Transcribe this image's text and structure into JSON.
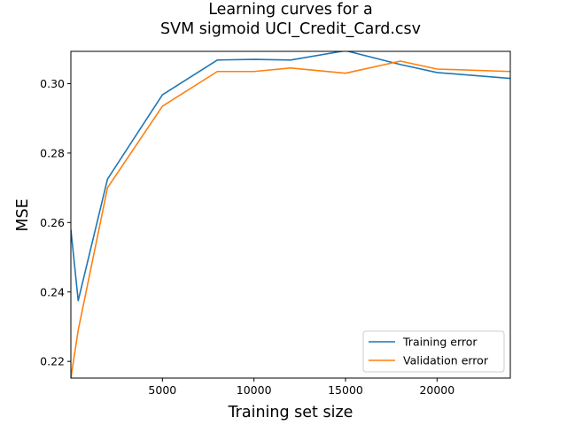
{
  "chart_data": {
    "type": "line",
    "title": [
      "Learning curves for a",
      "SVM sigmoid UCI_Credit_Card.csv"
    ],
    "xlabel": "Training set size",
    "ylabel": "MSE",
    "xlim": [
      0,
      24000
    ],
    "ylim": [
      0.2152,
      0.3093
    ],
    "xticks": [
      5000,
      10000,
      15000,
      20000
    ],
    "xtick_labels": [
      "5000",
      "10000",
      "15000",
      "20000"
    ],
    "yticks": [
      0.22,
      0.24,
      0.26,
      0.28,
      0.3
    ],
    "ytick_labels": [
      "0.22",
      "0.24",
      "0.26",
      "0.28",
      "0.30"
    ],
    "grid": false,
    "legend_position": "lower right",
    "series": [
      {
        "name": "Training error",
        "color": "#1f77b4",
        "x": [
          0,
          400,
          2000,
          5000,
          8000,
          10000,
          12000,
          15000,
          18000,
          20000,
          24000
        ],
        "y": [
          0.258,
          0.2375,
          0.2725,
          0.2968,
          0.3068,
          0.307,
          0.3068,
          0.3095,
          0.3055,
          0.3032,
          0.3015
        ]
      },
      {
        "name": "Validation error",
        "color": "#ff7f0e",
        "x": [
          0,
          400,
          2000,
          5000,
          8000,
          10000,
          12000,
          15000,
          18000,
          20000,
          24000
        ],
        "y": [
          0.2152,
          0.229,
          0.27,
          0.2935,
          0.3035,
          0.3035,
          0.3045,
          0.303,
          0.3065,
          0.3042,
          0.3035
        ]
      }
    ]
  }
}
